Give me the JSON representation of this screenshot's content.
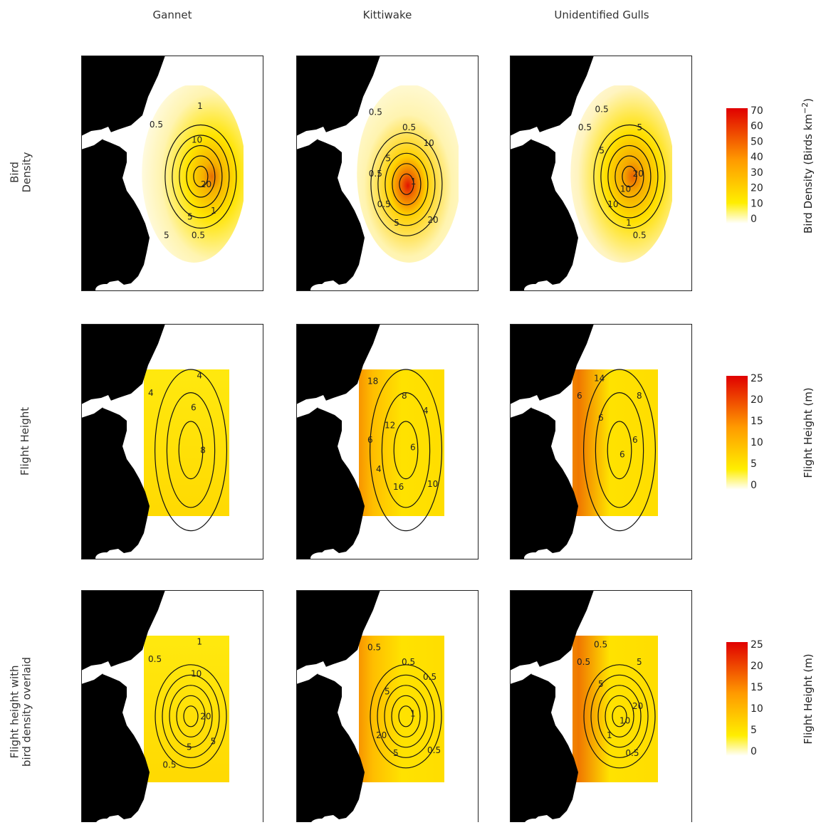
{
  "figure": {
    "columns": [
      "Gannet",
      "Kittiwake",
      "Unidentified Gulls"
    ],
    "rows": [
      {
        "label_lines": [
          "Bird",
          "Density"
        ]
      },
      {
        "label_lines": [
          "Flight Height"
        ]
      },
      {
        "label_lines": [
          "Flight height with",
          "bird density overlaid"
        ]
      }
    ]
  },
  "colors": {
    "land": "#000000",
    "low": "#ffffff",
    "mid": "#ffee00",
    "high": "#e00000",
    "contour": "#111111"
  },
  "chart_data": [
    {
      "type": "heatmap",
      "panel_title": "Bird Density",
      "series": [
        "Gannet",
        "Kittiwake",
        "Unidentified Gulls"
      ],
      "colorbar": {
        "label": "Bird Density (Birds km",
        "label_superscript": "−2",
        "label_end": ")",
        "ticks": [
          70,
          60,
          50,
          40,
          30,
          20,
          10,
          0
        ],
        "range": [
          0,
          70
        ]
      },
      "contour_labels": {
        "Gannet": [
          "1",
          "0.5",
          "10",
          "20",
          "5",
          "1",
          "5",
          "0.5"
        ],
        "Kittiwake": [
          "0.5",
          "5",
          "1",
          "5",
          "10",
          "0.5",
          "20",
          "0.5",
          "0.5"
        ],
        "Unidentified Gulls": [
          "0.5",
          "0.5",
          "5",
          "5",
          "20",
          "10",
          "10",
          "1",
          "0.5"
        ]
      }
    },
    {
      "type": "heatmap",
      "panel_title": "Flight Height",
      "series": [
        "Gannet",
        "Kittiwake",
        "Unidentified Gulls"
      ],
      "colorbar": {
        "label": "Flight Height (m)",
        "ticks": [
          25,
          20,
          15,
          10,
          5,
          0
        ],
        "range": [
          0,
          25
        ]
      },
      "contour_labels": {
        "Gannet": [
          "4",
          "4",
          "6",
          "8"
        ],
        "Kittiwake": [
          "18",
          "12",
          "6",
          "16",
          "4",
          "4",
          "10",
          "8",
          "6"
        ],
        "Unidentified Gulls": [
          "14",
          "6",
          "6",
          "8",
          "6",
          "6"
        ]
      }
    },
    {
      "type": "heatmap",
      "panel_title": "Flight height with bird density overlaid",
      "series": [
        "Gannet",
        "Kittiwake",
        "Unidentified Gulls"
      ],
      "colorbar": {
        "label": "Flight Height (m)",
        "ticks": [
          25,
          20,
          15,
          10,
          5,
          0
        ],
        "range": [
          0,
          25
        ]
      },
      "contour_labels": {
        "Gannet": [
          "1",
          "0.5",
          "10",
          "20",
          "5",
          "5",
          "0.5"
        ],
        "Kittiwake": [
          "0.5",
          "5",
          "1",
          "5",
          "0.5",
          "20",
          "0.5",
          "0.5"
        ],
        "Unidentified Gulls": [
          "0.5",
          "0.5",
          "5",
          "5",
          "20",
          "10",
          "1",
          "0.5"
        ]
      }
    }
  ]
}
